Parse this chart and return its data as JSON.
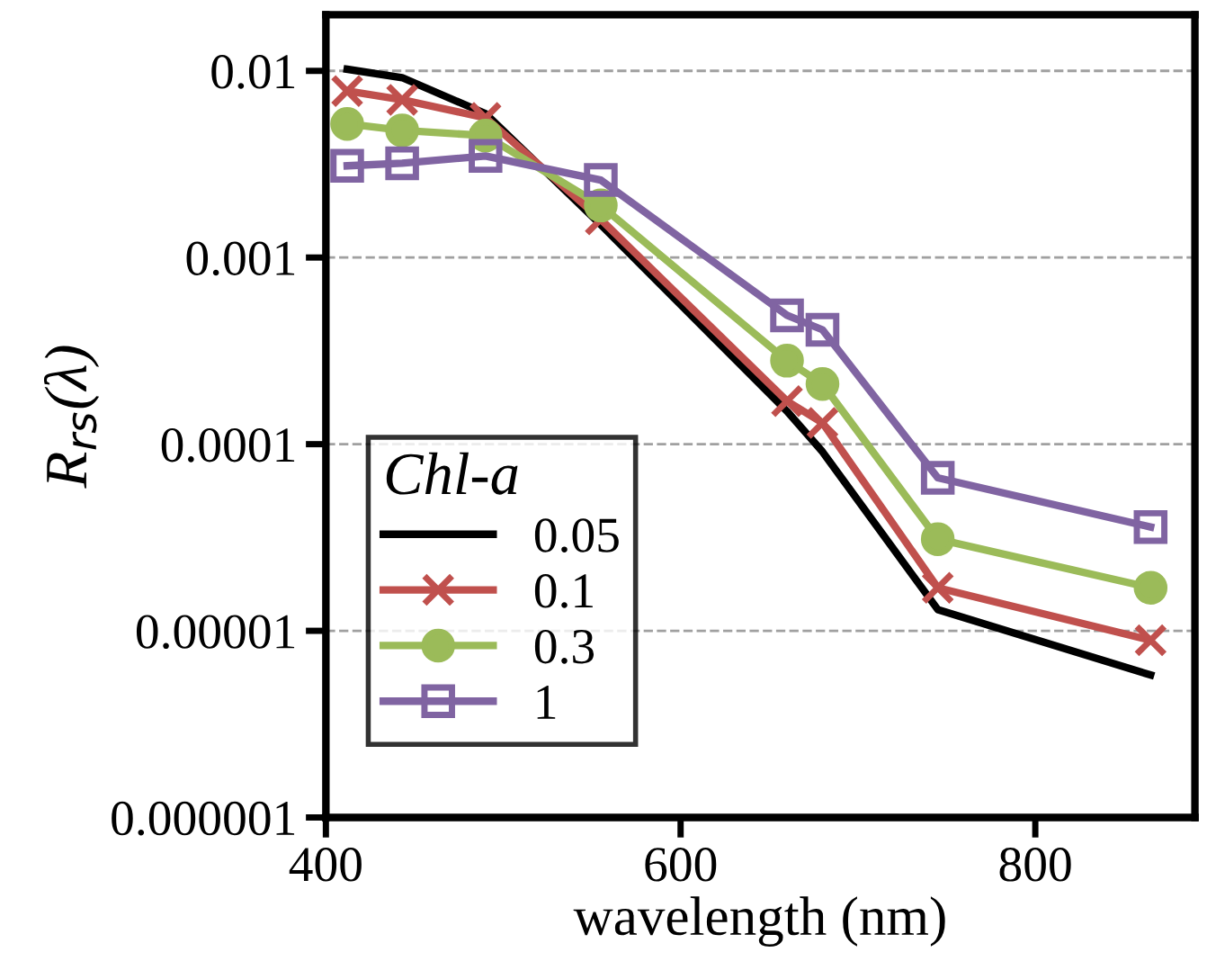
{
  "chart_data": {
    "type": "line",
    "xlabel": "wavelength (nm)",
    "ylabel": "R$_{rs}$(λ)",
    "legend_title": "Chl-a",
    "x": [
      412,
      443,
      490,
      555,
      660,
      680,
      745,
      865
    ],
    "series": [
      {
        "name": "0.05",
        "color": "#000000",
        "marker": "none",
        "values": [
          0.0102,
          0.0092,
          0.0059,
          0.0015,
          0.00015,
          9.1e-05,
          1.3e-05,
          5.8e-06
        ]
      },
      {
        "name": "0.1",
        "color": "#c0504d",
        "marker": "cross",
        "values": [
          0.0078,
          0.007,
          0.0056,
          0.0016,
          0.00017,
          0.00013,
          1.7e-05,
          8.9e-06
        ]
      },
      {
        "name": "0.3",
        "color": "#9bbb59",
        "marker": "circle",
        "values": [
          0.0052,
          0.0048,
          0.0045,
          0.0019,
          0.00028,
          0.00021,
          3.1e-05,
          1.7e-05
        ]
      },
      {
        "name": "1",
        "color": "#8064a2",
        "marker": "square",
        "values": [
          0.0031,
          0.0032,
          0.0035,
          0.0026,
          0.00049,
          0.00041,
          6.6e-05,
          3.6e-05
        ]
      }
    ],
    "log": "y",
    "xlim": [
      400,
      890
    ],
    "xticks": [
      400,
      600,
      800
    ],
    "ylim": [
      1e-06,
      0.02
    ],
    "yticks": [
      {
        "value": 1e-06,
        "label": "0.000001"
      },
      {
        "value": 1e-05,
        "label": "0.00001"
      },
      {
        "value": 0.0001,
        "label": "0.0001"
      },
      {
        "value": 0.001,
        "label": "0.001"
      },
      {
        "value": 0.01,
        "label": "0.01"
      }
    ],
    "grid": "y",
    "legend": "bottom left",
    "line_style": "solid"
  }
}
